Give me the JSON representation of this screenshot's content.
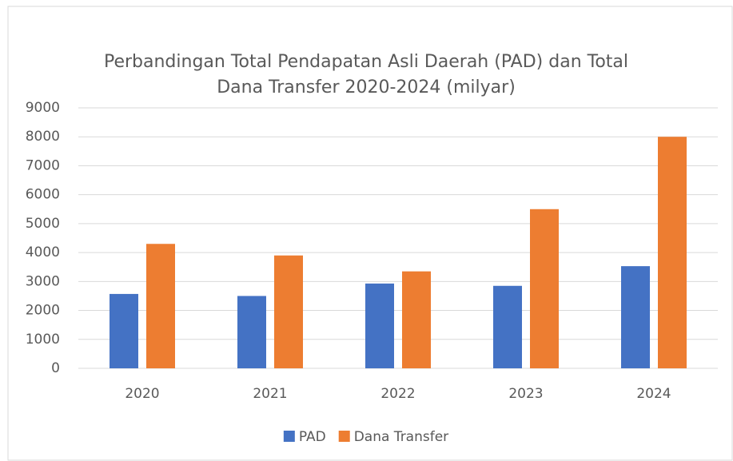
{
  "chart_data": {
    "type": "bar",
    "title": [
      "Perbandingan Total Pendapatan Asli Daerah (PAD) dan Total",
      "Dana Transfer 2020-2024 (milyar)"
    ],
    "categories": [
      "2020",
      "2021",
      "2022",
      "2023",
      "2024"
    ],
    "series": [
      {
        "name": "PAD",
        "color": "#4472c4",
        "values": [
          2570,
          2500,
          2930,
          2850,
          3530
        ]
      },
      {
        "name": "Dana Transfer",
        "color": "#ed7d31",
        "values": [
          4300,
          3900,
          3350,
          5500,
          8000
        ]
      }
    ],
    "ylim": [
      0,
      9000
    ],
    "yticks": [
      0,
      1000,
      2000,
      3000,
      4000,
      5000,
      6000,
      7000,
      8000,
      9000
    ],
    "grid": true,
    "legend": "bottom"
  }
}
